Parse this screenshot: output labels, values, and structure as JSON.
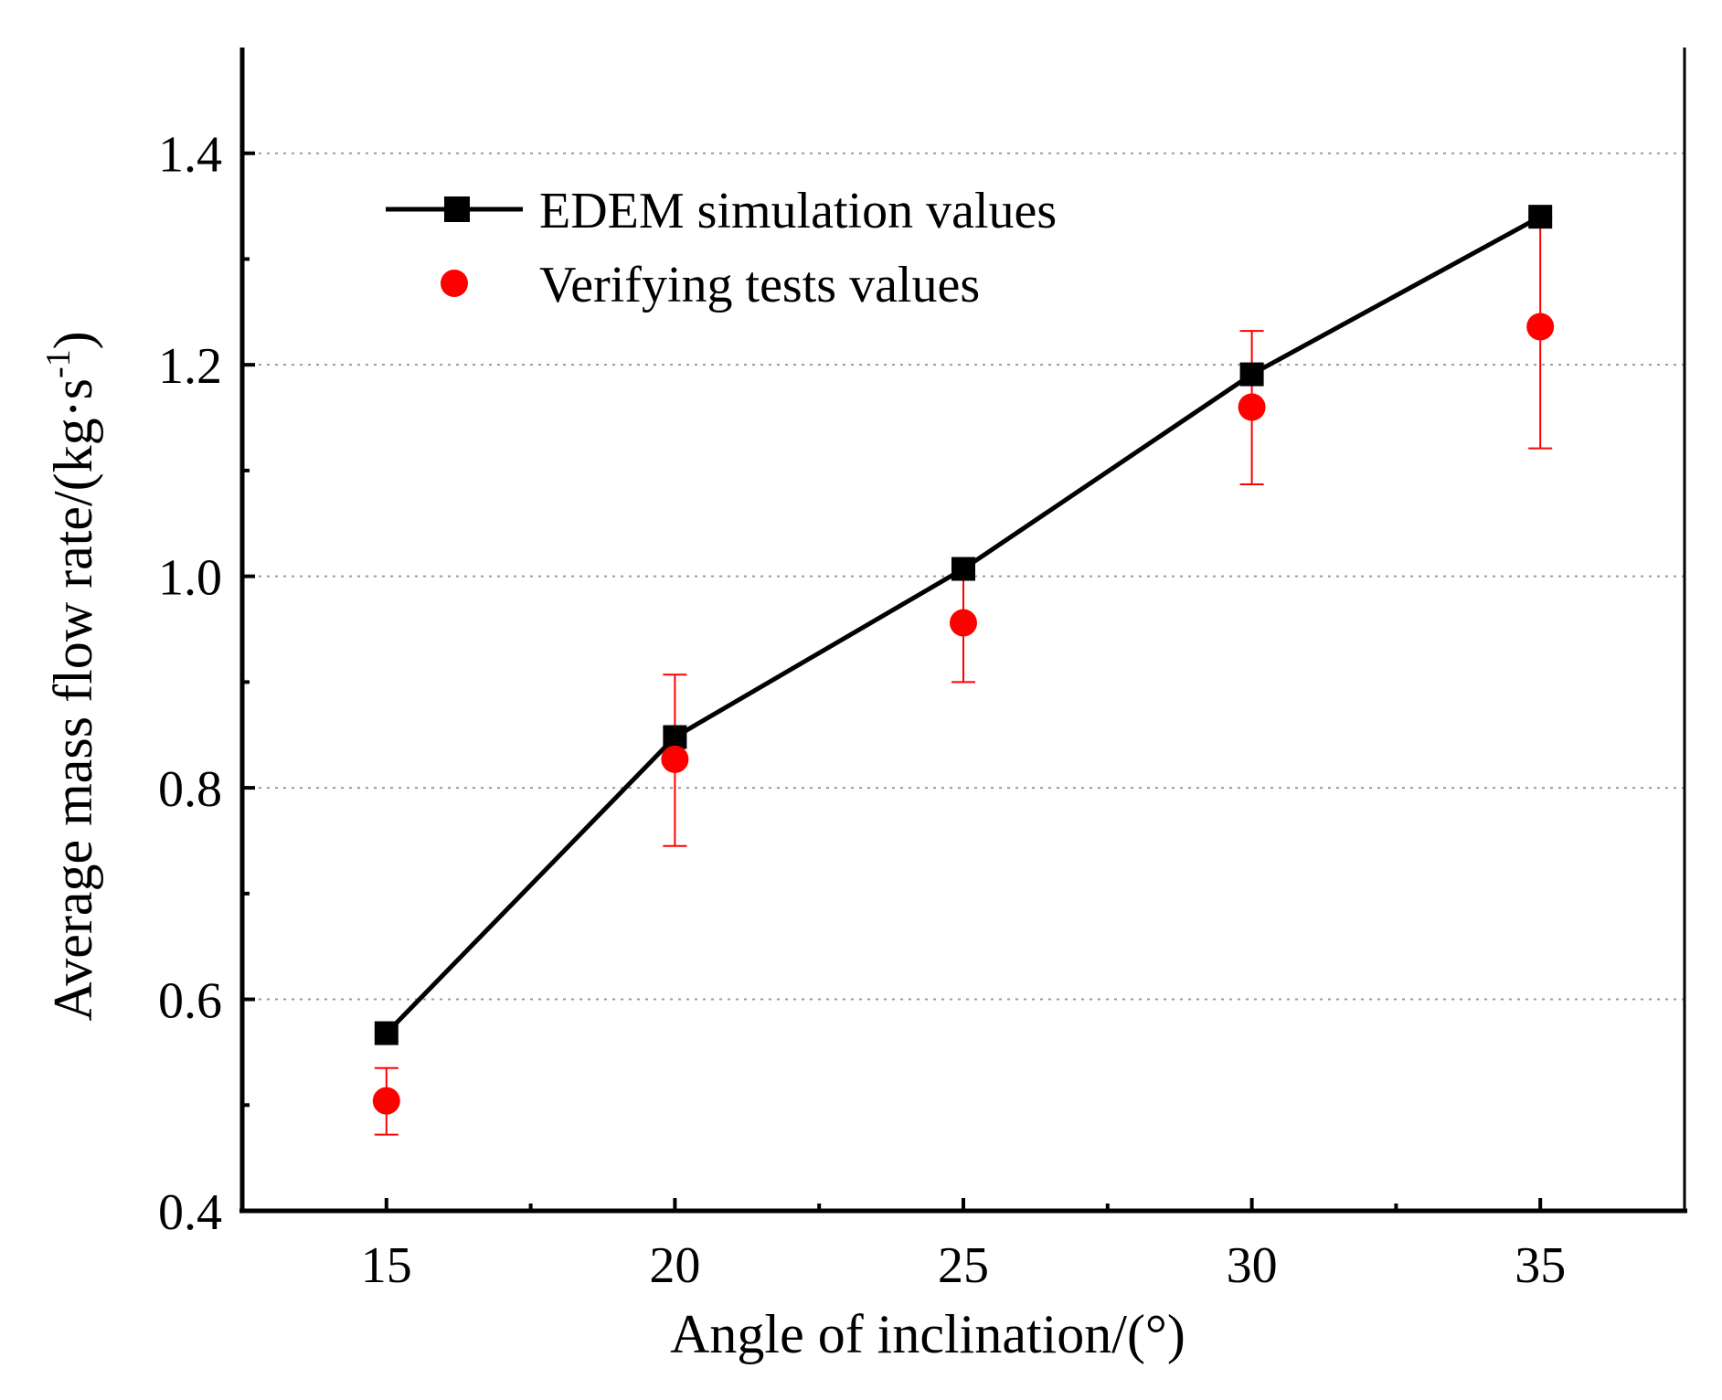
{
  "chart_data": {
    "type": "line",
    "xlabel": "Angle of  inclination/(°)",
    "ylabel": "Average mass flow rate/(kg·s",
    "ylabel_superscript": "-1",
    "ylabel_close": ")",
    "xlim": [
      12.5,
      37.5
    ],
    "ylim": [
      0.4,
      1.5
    ],
    "x_ticks": [
      15,
      20,
      25,
      30,
      35
    ],
    "x_tick_labels": [
      "15",
      "20",
      "25",
      "30",
      "35"
    ],
    "x_minor_ticks": [
      17.5,
      22.5,
      27.5,
      32.5
    ],
    "y_ticks": [
      0.4,
      0.6,
      0.8,
      1.0,
      1.2,
      1.4
    ],
    "y_tick_labels": [
      "0.4",
      "0.6",
      "0.8",
      "1.0",
      "1.2",
      "1.4"
    ],
    "y_minor_ticks": [
      0.5,
      0.7,
      0.9,
      1.1,
      1.3
    ],
    "grid": "horizontal dotted",
    "legend_position": "top-left",
    "series": [
      {
        "name": "EDEM simulation values",
        "style": "line-square",
        "color": "#000000",
        "x": [
          15,
          20,
          25,
          30,
          35
        ],
        "values": [
          0.568,
          0.848,
          1.007,
          1.191,
          1.34
        ]
      },
      {
        "name": "Verifying tests values",
        "style": "circle-errorbar",
        "color": "#ff0000",
        "x": [
          15,
          20,
          25,
          30,
          35
        ],
        "values": [
          0.504,
          0.827,
          0.956,
          1.16,
          1.236
        ],
        "err_low": [
          0.472,
          0.745,
          0.9,
          1.087,
          1.121
        ],
        "err_high": [
          0.535,
          0.907,
          1.01,
          1.232,
          1.34
        ]
      }
    ]
  }
}
